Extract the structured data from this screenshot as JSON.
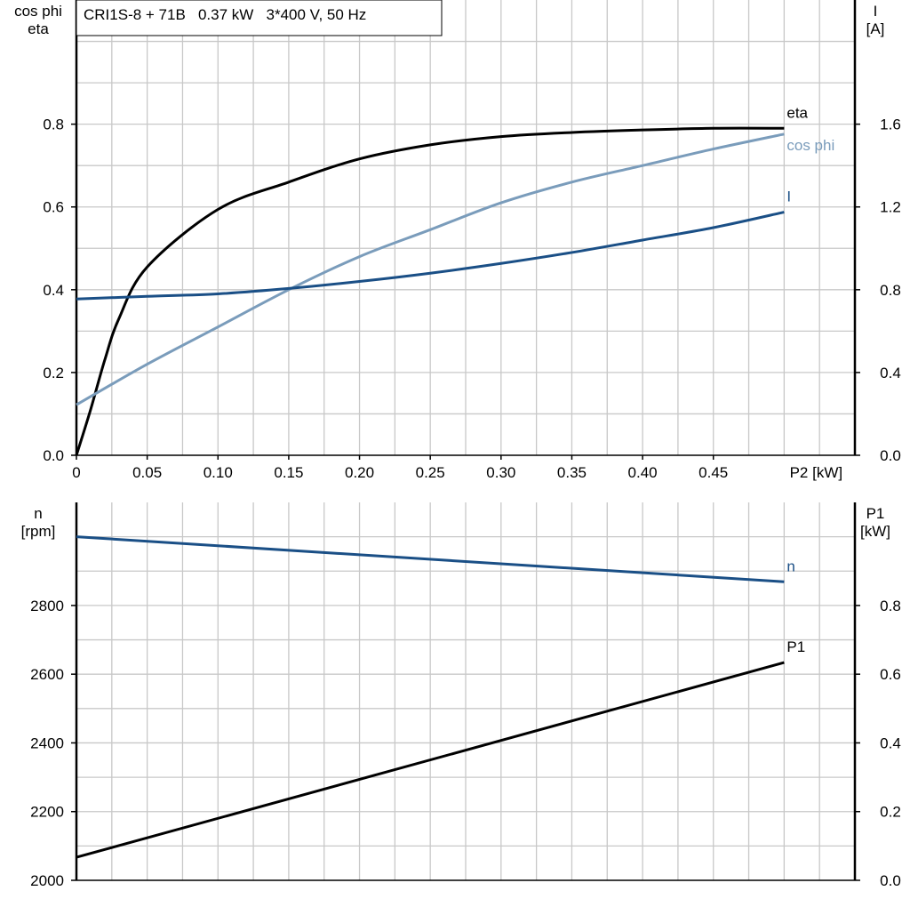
{
  "title": "CRI1S-8 + 71B   0.37 kW   3*400 V, 50 Hz",
  "chart_data": [
    {
      "type": "line",
      "xlabel": "P2 [kW]",
      "xlim": [
        0,
        0.55
      ],
      "xticks": [
        "0",
        "0.05",
        "0.10",
        "0.15",
        "0.20",
        "0.25",
        "0.30",
        "0.35",
        "0.40",
        "0.45"
      ],
      "ylabel_left": [
        "cos phi",
        "eta"
      ],
      "ylim_left": [
        0,
        1.1
      ],
      "yticks_left": [
        "0.0",
        "0.2",
        "0.4",
        "0.6",
        "0.8"
      ],
      "ylabel_right": [
        "I",
        "[A]"
      ],
      "ylim_right": [
        0,
        2.2
      ],
      "yticks_right": [
        "0.0",
        "0.4",
        "0.8",
        "1.2",
        "1.6"
      ],
      "grid": true,
      "series": [
        {
          "name": "eta",
          "axis": "left",
          "color": "#000000",
          "x": [
            0,
            0.01,
            0.02,
            0.03,
            0.05,
            0.1,
            0.15,
            0.2,
            0.25,
            0.3,
            0.35,
            0.4,
            0.45,
            0.5
          ],
          "y": [
            0,
            0.11,
            0.23,
            0.33,
            0.455,
            0.594,
            0.66,
            0.716,
            0.75,
            0.77,
            0.78,
            0.786,
            0.79,
            0.79
          ]
        },
        {
          "name": "cos phi",
          "axis": "left",
          "color": "#7a9cbb",
          "x": [
            0,
            0.05,
            0.1,
            0.15,
            0.2,
            0.25,
            0.3,
            0.35,
            0.4,
            0.45,
            0.5
          ],
          "y": [
            0.122,
            0.22,
            0.31,
            0.4,
            0.48,
            0.545,
            0.61,
            0.66,
            0.7,
            0.74,
            0.776
          ]
        },
        {
          "name": "I",
          "axis": "right",
          "color": "#1a4f86",
          "x": [
            0,
            0.05,
            0.1,
            0.15,
            0.2,
            0.25,
            0.3,
            0.35,
            0.4,
            0.45,
            0.5
          ],
          "y": [
            0.755,
            0.768,
            0.78,
            0.806,
            0.84,
            0.88,
            0.927,
            0.98,
            1.04,
            1.1,
            1.175
          ]
        }
      ]
    },
    {
      "type": "line",
      "xlim": [
        0,
        0.55
      ],
      "ylabel_left": [
        "n",
        "[rpm]"
      ],
      "ylim_left": [
        2000,
        3100
      ],
      "yticks_left": [
        "2000",
        "2200",
        "2400",
        "2600",
        "2800"
      ],
      "ylabel_right": [
        "P1",
        "[kW]"
      ],
      "ylim_right": [
        0,
        1.1
      ],
      "yticks_right": [
        "0.0",
        "0.2",
        "0.4",
        "0.6",
        "0.8"
      ],
      "grid": true,
      "series": [
        {
          "name": "n",
          "axis": "left",
          "color": "#1a4f86",
          "x": [
            0,
            0.5
          ],
          "y": [
            3000,
            2869
          ]
        },
        {
          "name": "P1",
          "axis": "right",
          "color": "#000000",
          "x": [
            0,
            0.5
          ],
          "y": [
            0.067,
            0.634
          ]
        }
      ]
    }
  ]
}
